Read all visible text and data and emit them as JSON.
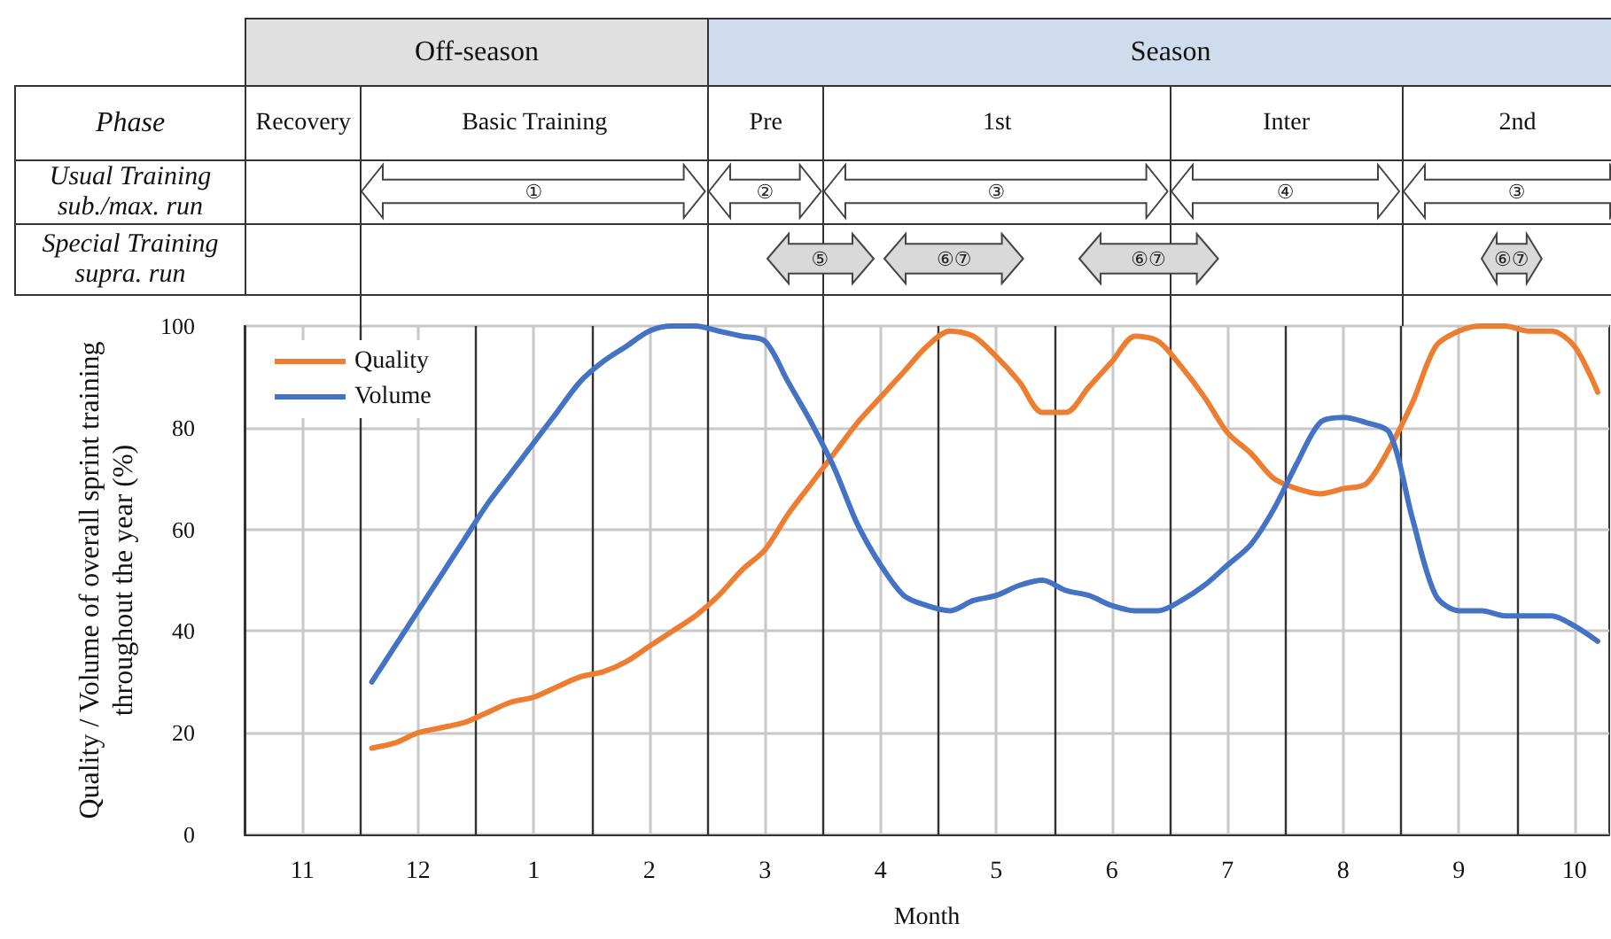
{
  "chart_data": {
    "type": "line",
    "xlabel": "Month",
    "ylabel": "Quality / Volume of overall sprint training\nthroughout the year (%)",
    "annotations": [
      "Off-season",
      "Season",
      "Phase",
      "Recovery",
      "Basic Training",
      "Pre",
      "1st",
      "Inter",
      "2nd",
      "Usual Training\nsub./max. run",
      "①",
      "②",
      "③",
      "④",
      "③",
      "Special Training\nsupra. run",
      "⑤",
      "⑥⑦",
      "⑥⑦",
      "⑥⑦"
    ],
    "categories": [
      null,
      null,
      "11",
      null,
      null,
      null,
      null,
      "12",
      null,
      null,
      null,
      null,
      "1",
      null,
      null,
      null,
      null,
      "2",
      null,
      null,
      null,
      null,
      "3",
      null,
      null,
      null,
      null,
      "4",
      null,
      null,
      null,
      null,
      "5",
      null,
      null,
      null,
      null,
      "6",
      null,
      null,
      null,
      null,
      "7",
      null,
      null,
      null,
      null,
      "8",
      null,
      null,
      null,
      null,
      "9",
      null,
      null,
      null,
      null,
      "10",
      null
    ],
    "ylim": [
      0,
      100
    ],
    "yticks": [
      0,
      20,
      40,
      60,
      80,
      100
    ],
    "grid": true,
    "legend": "top left",
    "marker": "none",
    "line_style": "solid",
    "series": [
      {
        "name": "Quality",
        "color": "#ed7d31",
        "values": [
          null,
          null,
          null,
          null,
          null,
          17,
          18,
          20,
          21,
          22,
          24,
          26,
          27,
          29,
          31,
          32,
          34,
          37,
          40,
          43,
          47,
          52,
          56,
          63,
          69,
          75,
          81,
          86,
          91,
          96,
          99,
          98,
          94,
          89,
          83,
          83,
          88,
          93,
          98,
          97,
          92,
          86,
          79,
          75,
          70,
          68,
          67,
          68,
          69,
          76,
          85,
          96,
          99,
          100,
          100,
          99,
          99,
          96,
          87
        ]
      },
      {
        "name": "Volume",
        "color": "#4472c4",
        "values": [
          null,
          null,
          null,
          null,
          null,
          30,
          37,
          44,
          51,
          58,
          65,
          71,
          77,
          83,
          89,
          93,
          96,
          99,
          100,
          100,
          99,
          98,
          97,
          89,
          81,
          72,
          61,
          53,
          47,
          45,
          44,
          46,
          47,
          49,
          50,
          48,
          47,
          45,
          44,
          44,
          46,
          49,
          53,
          57,
          64,
          73,
          81,
          82,
          81,
          79,
          62,
          47,
          44,
          44,
          43,
          43,
          43,
          41,
          38
        ]
      }
    ]
  }
}
